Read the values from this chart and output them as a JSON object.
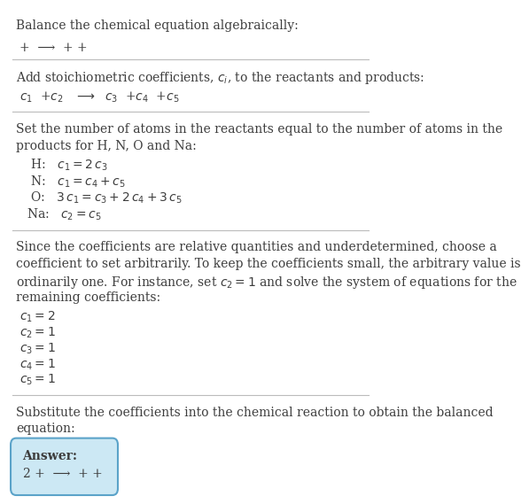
{
  "bg_color": "#ffffff",
  "text_color": "#3d3d3d",
  "title": "Balance the chemical equation algebraically:",
  "section1_line1": "+  ⟶  + +",
  "section2_header": "Add stoichiometric coefficients, $c_i$, to the reactants and products:",
  "section3_header_line1": "Set the number of atoms in the reactants equal to the number of atoms in the",
  "section3_header_line2": "products for H, N, O and Na:",
  "section4_header_line1": "Since the coefficients are relative quantities and underdetermined, choose a",
  "section4_header_line2": "coefficient to set arbitrarily. To keep the coefficients small, the arbitrary value is",
  "section4_header_line3": "ordinarily one. For instance, set $c_2 = 1$ and solve the system of equations for the",
  "section4_header_line4": "remaining coefficients:",
  "section5_header_line1": "Substitute the coefficients into the chemical reaction to obtain the balanced",
  "section5_header_line2": "equation:",
  "answer_label": "Answer:",
  "answer_line": "2 +  ⟶  + +",
  "box_color": "#cce8f4",
  "box_border": "#5ba3c9",
  "divider_color": "#bbbbbb",
  "font_size_body": 10,
  "font_size_math": 10
}
